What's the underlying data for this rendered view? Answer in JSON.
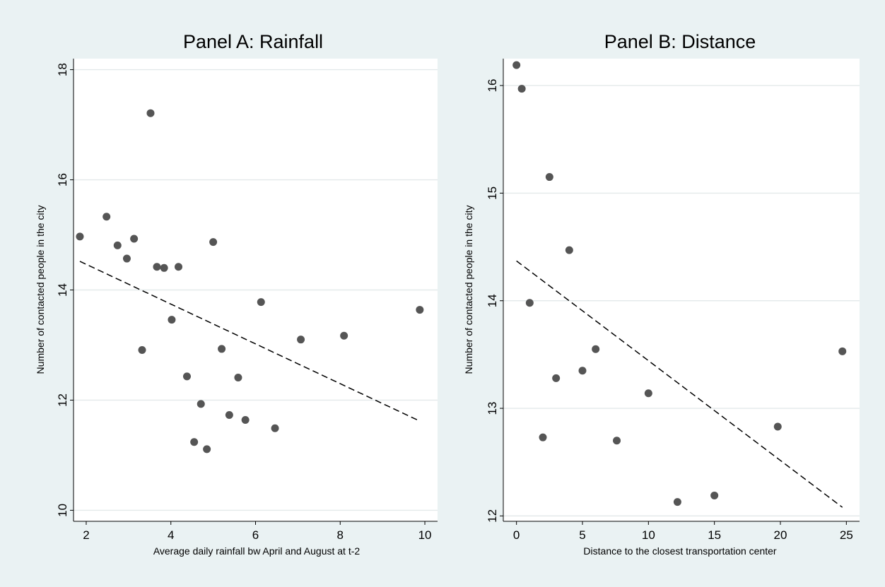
{
  "chart_data": [
    {
      "type": "scatter",
      "title": "Panel A: Rainfall",
      "xlabel": "Average daily rainfall bw April and August at t-2",
      "ylabel": "Number of contacted people in the city",
      "xlim": [
        1.7,
        10.3
      ],
      "ylim": [
        9.8,
        18.2
      ],
      "xticks": [
        2,
        4,
        6,
        8,
        10
      ],
      "yticks": [
        10,
        12,
        14,
        16,
        18
      ],
      "grid": "horizontal",
      "points": [
        {
          "x": 1.85,
          "y": 14.97
        },
        {
          "x": 2.48,
          "y": 15.33
        },
        {
          "x": 2.74,
          "y": 14.81
        },
        {
          "x": 2.96,
          "y": 14.57
        },
        {
          "x": 3.13,
          "y": 14.93
        },
        {
          "x": 3.32,
          "y": 12.91
        },
        {
          "x": 3.52,
          "y": 17.21
        },
        {
          "x": 3.67,
          "y": 14.42
        },
        {
          "x": 3.84,
          "y": 14.4
        },
        {
          "x": 4.02,
          "y": 13.46
        },
        {
          "x": 4.18,
          "y": 14.42
        },
        {
          "x": 4.38,
          "y": 12.43
        },
        {
          "x": 4.55,
          "y": 11.24
        },
        {
          "x": 4.71,
          "y": 11.93
        },
        {
          "x": 4.85,
          "y": 11.11
        },
        {
          "x": 5.0,
          "y": 14.87
        },
        {
          "x": 5.2,
          "y": 12.93
        },
        {
          "x": 5.38,
          "y": 11.73
        },
        {
          "x": 5.59,
          "y": 12.41
        },
        {
          "x": 5.76,
          "y": 11.64
        },
        {
          "x": 6.13,
          "y": 13.78
        },
        {
          "x": 6.46,
          "y": 11.49
        },
        {
          "x": 7.07,
          "y": 13.1
        },
        {
          "x": 8.09,
          "y": 13.17
        },
        {
          "x": 9.88,
          "y": 13.64
        }
      ],
      "fit_line": {
        "x": [
          1.85,
          9.88
        ],
        "y": [
          14.52,
          11.62
        ]
      }
    },
    {
      "type": "scatter",
      "title": "Panel B: Distance",
      "xlabel": "Distance to the closest transportation center",
      "ylabel": "Number of contacted people in the city",
      "xlim": [
        -1.0,
        26.0
      ],
      "ylim": [
        11.95,
        16.25
      ],
      "xticks": [
        0,
        5,
        10,
        15,
        20,
        25
      ],
      "yticks": [
        12,
        13,
        14,
        15,
        16
      ],
      "grid": "horizontal",
      "points": [
        {
          "x": 0.0,
          "y": 16.19
        },
        {
          "x": 0.4,
          "y": 15.97
        },
        {
          "x": 1.0,
          "y": 13.98
        },
        {
          "x": 2.0,
          "y": 12.73
        },
        {
          "x": 2.5,
          "y": 15.15
        },
        {
          "x": 3.0,
          "y": 13.28
        },
        {
          "x": 4.0,
          "y": 14.47
        },
        {
          "x": 5.0,
          "y": 13.35
        },
        {
          "x": 6.0,
          "y": 13.55
        },
        {
          "x": 7.6,
          "y": 12.7
        },
        {
          "x": 10.0,
          "y": 13.14
        },
        {
          "x": 12.2,
          "y": 12.13
        },
        {
          "x": 15.0,
          "y": 12.19
        },
        {
          "x": 19.8,
          "y": 12.83
        },
        {
          "x": 24.7,
          "y": 13.53
        }
      ],
      "fit_line": {
        "x": [
          0.0,
          24.7
        ],
        "y": [
          14.37,
          12.08
        ]
      }
    }
  ]
}
